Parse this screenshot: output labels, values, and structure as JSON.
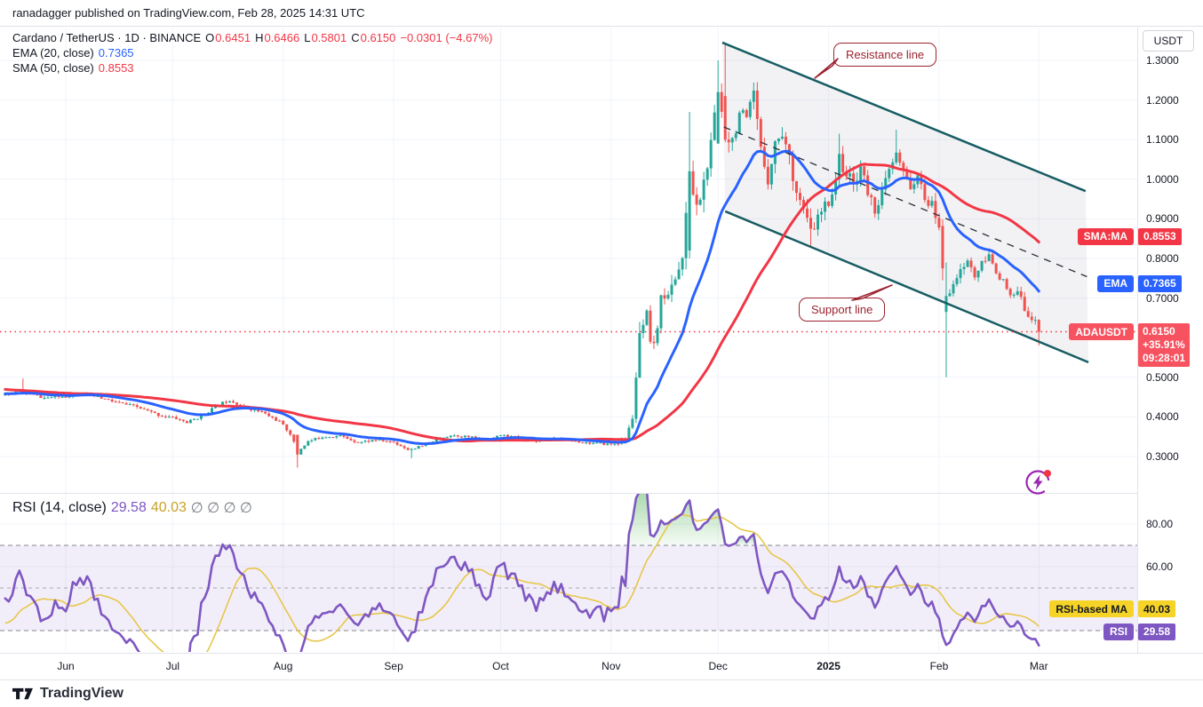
{
  "header": {
    "published_line": "ranadagger published on TradingView.com, Feb 28, 2025 14:31 UTC"
  },
  "footer": {
    "brand": "TradingView"
  },
  "main_legend": {
    "title": "Cardano / TetherUS · 1D · BINANCE",
    "o_label": "O",
    "o": "0.6451",
    "h_label": "H",
    "h": "0.6466",
    "l_label": "L",
    "l": "0.5801",
    "c_label": "C",
    "c": "0.6150",
    "change": "−0.0301 (−4.67%)",
    "ema_label": "EMA (20, close)",
    "ema_value": "0.7365",
    "sma_label": "SMA (50, close)",
    "sma_value": "0.8553"
  },
  "rsi_legend": {
    "label": "RSI (14, close)",
    "rsi_value": "29.58",
    "ma_value": "40.03",
    "empties": "∅ ∅ ∅ ∅"
  },
  "price_axis": {
    "currency": "USDT",
    "labels": [
      {
        "text": "1.3000",
        "value": 1.3
      },
      {
        "text": "1.2000",
        "value": 1.2
      },
      {
        "text": "1.1000",
        "value": 1.1
      },
      {
        "text": "1.0000",
        "value": 1.0
      },
      {
        "text": "0.9000",
        "value": 0.9
      },
      {
        "text": "0.8000",
        "value": 0.8
      },
      {
        "text": "0.7000",
        "value": 0.7
      },
      {
        "text": "0.5000",
        "value": 0.5
      },
      {
        "text": "0.4000",
        "value": 0.4
      },
      {
        "text": "0.3000",
        "value": 0.3
      }
    ],
    "badges": {
      "sma": {
        "label": "SMA:MA",
        "value_text": "0.8553",
        "value": 0.8553
      },
      "ema": {
        "label": "EMA",
        "value_text": "0.7365",
        "value": 0.7365
      },
      "price": {
        "label": "ADAUSDT",
        "lines": [
          "0.6150",
          "+35.91%",
          "09:28:01"
        ],
        "value": 0.615
      }
    }
  },
  "rsi_axis": {
    "labels": [
      {
        "text": "80.00",
        "value": 80
      },
      {
        "text": "60.00",
        "value": 60
      }
    ],
    "badges": {
      "ma": {
        "label": "RSI-based MA",
        "value_text": "40.03",
        "value": 40.03
      },
      "rsi": {
        "label": "RSI",
        "value_text": "29.58",
        "value": 29.58
      }
    }
  },
  "time_axis": {
    "ticks": [
      {
        "label": "Jun",
        "day": 0
      },
      {
        "label": "Jul",
        "day": 30
      },
      {
        "label": "Aug",
        "day": 61
      },
      {
        "label": "Sep",
        "day": 92
      },
      {
        "label": "Oct",
        "day": 122
      },
      {
        "label": "Nov",
        "day": 153
      },
      {
        "label": "Dec",
        "day": 183
      },
      {
        "label": "2025",
        "day": 214,
        "bold": true
      },
      {
        "label": "Feb",
        "day": 245
      },
      {
        "label": "Mar",
        "day": 273
      }
    ]
  },
  "annotations": {
    "resistance": "Resistance line",
    "support": "Support line"
  },
  "colors": {
    "text": "#131722",
    "muted": "#787b86",
    "grid": "#f0f3fa",
    "border": "#e0e3eb",
    "up": "#26a69a",
    "down": "#ef5350",
    "ema": "#2962ff",
    "sma": "#f23645",
    "channel": "#175d63",
    "channel_fill": "rgba(149,152,161,0.12)",
    "median": "#2a2e39",
    "last_price": "#f23645",
    "badge_sma_bg": "#f23645",
    "badge_ema_bg": "#2962ff",
    "badge_price_bg": "#f7525f",
    "rsi": "#7e57c2",
    "rsi_ma": "#e7c64a",
    "rsi_band": "rgba(126,87,194,0.10)",
    "rsi_level": "#787b86",
    "rsi_overbought_fill": "#4caf50",
    "badge_rsi_bg": "#7e57c2",
    "badge_rsi_ma_bg": "#f5d327",
    "badge_rsi_ma_text": "#131722",
    "callout": "#9c2330",
    "lightning": "#9c27b0",
    "notification_dot": "#f23645"
  },
  "chart_data": {
    "type": "candlestick",
    "symbol": "ADAUSDT",
    "exchange": "BINANCE",
    "interval": "1D",
    "last_ohlc": {
      "o": 0.6451,
      "h": 0.6466,
      "l": 0.5801,
      "c": 0.615,
      "change": -0.0301,
      "change_pct": -4.67
    },
    "y_visible_range": [
      0.21,
      1.385
    ],
    "x_visible_range_days": [
      -18,
      301
    ],
    "price_ticks": [
      1.3,
      1.2,
      1.1,
      1.0,
      0.9,
      0.8,
      0.7,
      0.5,
      0.4,
      0.3
    ],
    "indicators": {
      "ema": {
        "period": 20,
        "source": "close",
        "value": 0.7365
      },
      "sma": {
        "period": 50,
        "source": "close",
        "value": 0.8553
      },
      "rsi": {
        "period": 14,
        "source": "close",
        "value": 29.58,
        "ma_period": 14,
        "ma_value": 40.03,
        "levels": [
          70,
          50,
          30
        ],
        "band": [
          30,
          70
        ],
        "axis_ticks": [
          80,
          60
        ]
      }
    },
    "seed": 11,
    "warmup_day_start": -75,
    "visible_day_start": -17,
    "day_end": 273,
    "anchors": [
      [
        -75,
        0.5
      ],
      [
        -60,
        0.485
      ],
      [
        -45,
        0.468
      ],
      [
        -30,
        0.462
      ],
      [
        -20,
        0.452
      ],
      [
        -13,
        0.465
      ],
      [
        -6,
        0.448
      ],
      [
        0,
        0.452
      ],
      [
        4,
        0.462
      ],
      [
        8,
        0.452
      ],
      [
        14,
        0.437
      ],
      [
        20,
        0.425
      ],
      [
        26,
        0.405
      ],
      [
        31,
        0.396
      ],
      [
        34,
        0.386
      ],
      [
        38,
        0.402
      ],
      [
        43,
        0.432
      ],
      [
        46,
        0.443
      ],
      [
        50,
        0.425
      ],
      [
        55,
        0.412
      ],
      [
        60,
        0.388
      ],
      [
        63,
        0.358
      ],
      [
        65,
        0.312
      ],
      [
        68,
        0.338
      ],
      [
        72,
        0.35
      ],
      [
        77,
        0.352
      ],
      [
        82,
        0.336
      ],
      [
        87,
        0.342
      ],
      [
        92,
        0.336
      ],
      [
        96,
        0.318
      ],
      [
        100,
        0.326
      ],
      [
        104,
        0.344
      ],
      [
        108,
        0.354
      ],
      [
        113,
        0.35
      ],
      [
        118,
        0.34
      ],
      [
        122,
        0.354
      ],
      [
        127,
        0.348
      ],
      [
        132,
        0.34
      ],
      [
        137,
        0.346
      ],
      [
        142,
        0.34
      ],
      [
        147,
        0.334
      ],
      [
        153,
        0.331
      ],
      [
        157,
        0.34
      ],
      [
        159,
        0.4
      ],
      [
        161,
        0.6
      ],
      [
        163,
        0.655
      ],
      [
        164,
        0.575
      ],
      [
        166,
        0.61
      ],
      [
        167,
        0.72
      ],
      [
        169,
        0.7
      ],
      [
        171,
        0.755
      ],
      [
        173,
        0.8
      ],
      [
        175,
        1.0
      ],
      [
        177,
        0.925
      ],
      [
        179,
        0.99
      ],
      [
        181,
        1.08
      ],
      [
        183,
        1.22
      ],
      [
        185,
        1.12
      ],
      [
        187,
        1.1
      ],
      [
        189,
        1.17
      ],
      [
        191,
        1.14
      ],
      [
        193,
        1.21
      ],
      [
        195,
        1.07
      ],
      [
        197,
        1.005
      ],
      [
        199,
        1.09
      ],
      [
        201,
        1.12
      ],
      [
        203,
        1.05
      ],
      [
        205,
        0.975
      ],
      [
        207,
        0.92
      ],
      [
        209,
        0.865
      ],
      [
        211,
        0.9
      ],
      [
        213,
        0.93
      ],
      [
        215,
        0.965
      ],
      [
        217,
        1.05
      ],
      [
        219,
        1.015
      ],
      [
        221,
        0.985
      ],
      [
        223,
        1.035
      ],
      [
        225,
        0.965
      ],
      [
        227,
        0.925
      ],
      [
        229,
        0.965
      ],
      [
        231,
        1.02
      ],
      [
        233,
        1.06
      ],
      [
        235,
        1.015
      ],
      [
        237,
        0.985
      ],
      [
        239,
        1.0
      ],
      [
        241,
        0.955
      ],
      [
        243,
        0.93
      ],
      [
        245,
        0.885
      ],
      [
        247,
        0.7
      ],
      [
        249,
        0.745
      ],
      [
        251,
        0.765
      ],
      [
        253,
        0.795
      ],
      [
        255,
        0.755
      ],
      [
        257,
        0.785
      ],
      [
        259,
        0.805
      ],
      [
        261,
        0.77
      ],
      [
        263,
        0.74
      ],
      [
        265,
        0.7
      ],
      [
        267,
        0.715
      ],
      [
        269,
        0.675
      ],
      [
        271,
        0.648
      ],
      [
        272,
        0.645
      ],
      [
        273,
        0.615
      ]
    ],
    "volatility": [
      [
        -75,
        0.009
      ],
      [
        0,
        0.01
      ],
      [
        60,
        0.01
      ],
      [
        100,
        0.008
      ],
      [
        150,
        0.008
      ],
      [
        158,
        0.016
      ],
      [
        160,
        0.04
      ],
      [
        168,
        0.045
      ],
      [
        175,
        0.06
      ],
      [
        183,
        0.07
      ],
      [
        195,
        0.055
      ],
      [
        214,
        0.045
      ],
      [
        240,
        0.038
      ],
      [
        246,
        0.05
      ],
      [
        250,
        0.03
      ],
      [
        262,
        0.028
      ],
      [
        273,
        0.024
      ]
    ],
    "overrides": [
      {
        "day": -12,
        "h": 0.497
      },
      {
        "day": 65,
        "o": 0.355,
        "c": 0.305,
        "l": 0.272
      },
      {
        "day": 97,
        "l": 0.296
      },
      {
        "day": 161,
        "h": 0.64
      },
      {
        "day": 175,
        "o": 0.82,
        "c": 1.02,
        "h": 1.17,
        "l": 0.8
      },
      {
        "day": 183,
        "o": 1.09,
        "c": 1.22,
        "h": 1.3
      },
      {
        "day": 185,
        "o": 1.21,
        "c": 1.1,
        "h": 1.345
      },
      {
        "day": 209,
        "l": 0.828
      },
      {
        "day": 217,
        "h": 1.115
      },
      {
        "day": 233,
        "h": 1.125
      },
      {
        "day": 246,
        "o": 0.882,
        "c": 0.775,
        "l": 0.745
      },
      {
        "day": 247,
        "o": 0.665,
        "c": 0.705,
        "l": 0.5,
        "h": 0.79
      },
      {
        "day": 272,
        "c": 0.6451
      },
      {
        "day": 273,
        "o": 0.6451,
        "h": 0.6466,
        "l": 0.5801,
        "c": 0.615
      }
    ],
    "channel": {
      "resistance": {
        "label": "Resistance line",
        "from": [
          184.2,
          1.345
        ],
        "to": [
          286.1,
          0.97
        ]
      },
      "support": {
        "label": "Support line",
        "from": [
          185.0,
          0.919
        ],
        "to": [
          286.9,
          0.538
        ]
      },
      "median_dashed": true
    },
    "last_price_line": 0.615
  }
}
